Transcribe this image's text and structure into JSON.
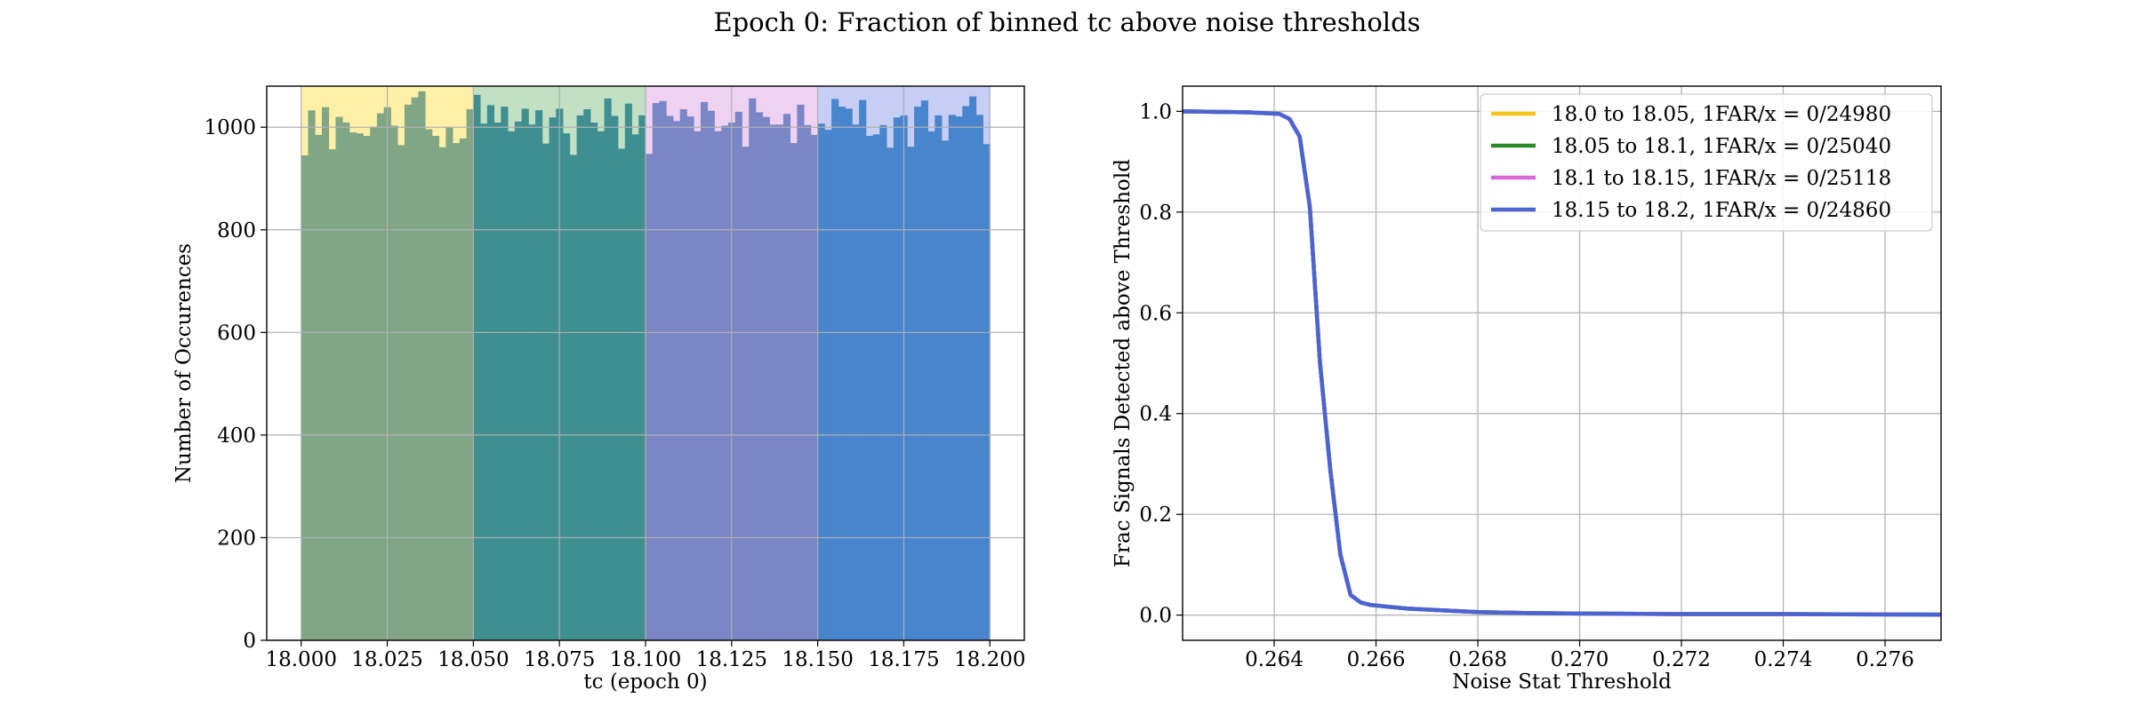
{
  "figure": {
    "suptitle": "Epoch 0: Fraction of binned tc above noise thresholds"
  },
  "chart_data": [
    {
      "type": "bar",
      "subtype": "histogram",
      "xlabel": "tc (epoch 0)",
      "ylabel": "Number of Occurences",
      "xlim": [
        17.99,
        18.21
      ],
      "ylim": [
        0,
        1080
      ],
      "xticks": [
        18.0,
        18.025,
        18.05,
        18.075,
        18.1,
        18.125,
        18.15,
        18.175,
        18.2
      ],
      "xtick_labels": [
        "18.000",
        "18.025",
        "18.050",
        "18.075",
        "18.100",
        "18.125",
        "18.150",
        "18.175",
        "18.200"
      ],
      "yticks": [
        0,
        200,
        400,
        600,
        800,
        1000
      ],
      "ytick_labels": [
        "0",
        "200",
        "400",
        "600",
        "800",
        "1000"
      ],
      "grid": true,
      "bin_width": 0.002,
      "shaded_regions": [
        {
          "range": [
            18.0,
            18.05
          ],
          "color": "#fff0a8"
        },
        {
          "range": [
            18.05,
            18.1
          ],
          "color": "#c2e0c4"
        },
        {
          "range": [
            18.1,
            18.15
          ],
          "color": "#efd2f1"
        },
        {
          "range": [
            18.15,
            18.2
          ],
          "color": "#c6cef6"
        }
      ],
      "series": [
        {
          "range": [
            18.0,
            18.05
          ],
          "color": "#80a686",
          "values": [
            945,
            1033,
            985,
            1039,
            957,
            1020,
            1009,
            990,
            988,
            983,
            1001,
            1027,
            1039,
            1003,
            965,
            1044,
            1058,
            1070,
            996,
            983,
            961,
            999,
            969,
            978,
            1035
          ]
        },
        {
          "range": [
            18.05,
            18.1
          ],
          "color": "#3f8f91",
          "values": [
            1063,
            1007,
            1043,
            1009,
            1040,
            992,
            1011,
            1036,
            1005,
            1033,
            968,
            1019,
            1036,
            988,
            946,
            1023,
            1035,
            1009,
            992,
            1056,
            1022,
            958,
            1046,
            986,
            1023
          ]
        },
        {
          "range": [
            18.1,
            18.15
          ],
          "color": "#7a86c6",
          "values": [
            948,
            1047,
            1051,
            1022,
            1012,
            1035,
            1021,
            992,
            1049,
            1032,
            992,
            1003,
            1009,
            1030,
            962,
            1056,
            1029,
            1020,
            1005,
            1005,
            1026,
            969,
            1044,
            1004,
            985
          ]
        },
        {
          "range": [
            18.15,
            18.2
          ],
          "color": "#4985cc",
          "values": [
            1007,
            995,
            1055,
            1040,
            1036,
            1005,
            1053,
            983,
            986,
            1004,
            960,
            1019,
            1023,
            962,
            1040,
            1052,
            992,
            1023,
            974,
            1024,
            1021,
            1041,
            1060,
            1024,
            967
          ]
        }
      ]
    },
    {
      "type": "line",
      "xlabel": "Noise Stat Threshold",
      "ylabel": "Frac Signals Detected above Threshold",
      "xlim": [
        0.2622,
        0.2771
      ],
      "ylim": [
        -0.05,
        1.05
      ],
      "xticks": [
        0.264,
        0.266,
        0.268,
        0.27,
        0.272,
        0.274,
        0.276
      ],
      "xtick_labels": [
        "0.264",
        "0.266",
        "0.268",
        "0.270",
        "0.272",
        "0.274",
        "0.276"
      ],
      "yticks": [
        0.0,
        0.2,
        0.4,
        0.6,
        0.8,
        1.0
      ],
      "ytick_labels": [
        "0.0",
        "0.2",
        "0.4",
        "0.6",
        "0.8",
        "1.0"
      ],
      "grid": true,
      "legend_position": "top-right",
      "series": [
        {
          "name": "18.0 to 18.05, 1FAR/x = 0/24980",
          "color": "#f5c518",
          "x": [
            0.2622,
            0.2635,
            0.2641,
            0.2643,
            0.2645,
            0.2647,
            0.2649,
            0.2651,
            0.2653,
            0.2655,
            0.2657,
            0.2659,
            0.2661,
            0.2663,
            0.2666,
            0.2672,
            0.268,
            0.269,
            0.27,
            0.272,
            0.274,
            0.2771
          ],
          "y": [
            1.0,
            0.998,
            0.995,
            0.985,
            0.95,
            0.81,
            0.5,
            0.29,
            0.12,
            0.04,
            0.025,
            0.02,
            0.018,
            0.016,
            0.013,
            0.01,
            0.006,
            0.004,
            0.003,
            0.002,
            0.002,
            0.001
          ]
        },
        {
          "name": "18.05 to 18.1, 1FAR/x = 0/25040",
          "color": "#2a8a2a",
          "x": [
            0.2622,
            0.2635,
            0.2641,
            0.2643,
            0.2645,
            0.2647,
            0.2649,
            0.2651,
            0.2653,
            0.2655,
            0.2657,
            0.2659,
            0.2661,
            0.2663,
            0.2666,
            0.2672,
            0.268,
            0.269,
            0.27,
            0.272,
            0.274,
            0.2771
          ],
          "y": [
            1.0,
            0.998,
            0.995,
            0.985,
            0.95,
            0.81,
            0.5,
            0.29,
            0.12,
            0.04,
            0.025,
            0.02,
            0.018,
            0.016,
            0.013,
            0.01,
            0.006,
            0.004,
            0.003,
            0.002,
            0.002,
            0.001
          ]
        },
        {
          "name": "18.1 to 18.15, 1FAR/x = 0/25118",
          "color": "#d868d8",
          "x": [
            0.2622,
            0.2635,
            0.2641,
            0.2643,
            0.2645,
            0.2647,
            0.2649,
            0.2651,
            0.2653,
            0.2655,
            0.2657,
            0.2659,
            0.2661,
            0.2663,
            0.2666,
            0.2672,
            0.268,
            0.269,
            0.27,
            0.272,
            0.274,
            0.2771
          ],
          "y": [
            1.0,
            0.998,
            0.995,
            0.985,
            0.95,
            0.81,
            0.5,
            0.29,
            0.12,
            0.04,
            0.025,
            0.02,
            0.018,
            0.016,
            0.013,
            0.01,
            0.006,
            0.004,
            0.003,
            0.002,
            0.002,
            0.001
          ]
        },
        {
          "name": "18.15 to 18.2, 1FAR/x = 0/24860",
          "color": "#4a64d2",
          "x": [
            0.2622,
            0.2635,
            0.2641,
            0.2643,
            0.2645,
            0.2647,
            0.2649,
            0.2651,
            0.2653,
            0.2655,
            0.2657,
            0.2659,
            0.2661,
            0.2663,
            0.2666,
            0.2672,
            0.268,
            0.269,
            0.27,
            0.272,
            0.274,
            0.2771
          ],
          "y": [
            1.0,
            0.998,
            0.995,
            0.985,
            0.95,
            0.81,
            0.5,
            0.29,
            0.12,
            0.04,
            0.025,
            0.02,
            0.018,
            0.016,
            0.013,
            0.01,
            0.006,
            0.004,
            0.003,
            0.002,
            0.002,
            0.001
          ]
        }
      ]
    }
  ]
}
